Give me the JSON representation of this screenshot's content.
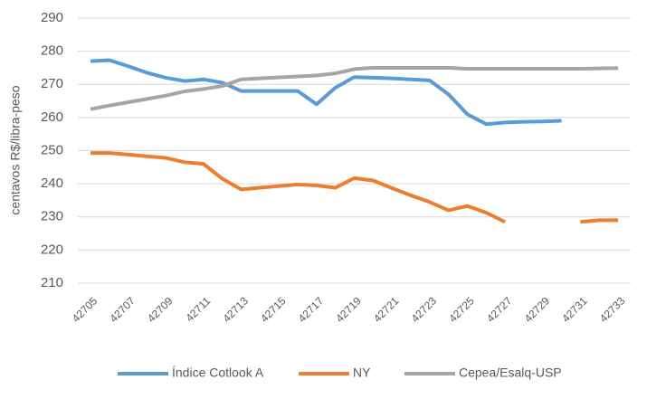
{
  "chart_data": {
    "type": "line",
    "y_label": "centavos R$/libra-peso",
    "x": [
      42705,
      42706,
      42707,
      42708,
      42709,
      42710,
      42711,
      42712,
      42713,
      42714,
      42715,
      42716,
      42717,
      42718,
      42719,
      42720,
      42721,
      42722,
      42723,
      42724,
      42725,
      42726,
      42727,
      42728,
      42729,
      42730,
      42731,
      42732,
      42733
    ],
    "series": [
      {
        "name": "Índice Cotlook A",
        "color": "#5b9bd5",
        "values": [
          277,
          277.3,
          275.5,
          273.5,
          272,
          271,
          271.5,
          270.5,
          268,
          268,
          268,
          268,
          264,
          269,
          272.2,
          272,
          271.8,
          271.5,
          271.2,
          267,
          261,
          258,
          258.5,
          258.7,
          258.8,
          259,
          null,
          null,
          null
        ]
      },
      {
        "name": "NY",
        "color": "#ed7d31",
        "values": [
          249.3,
          249.3,
          248.8,
          248.3,
          247.8,
          246.5,
          246,
          241.5,
          238.3,
          238.8,
          239.3,
          239.8,
          239.5,
          238.8,
          241.7,
          241,
          238.7,
          236.5,
          234.5,
          232,
          233.3,
          231.3,
          228.5,
          null,
          null,
          null,
          228.5,
          229,
          229
        ]
      },
      {
        "name": "Cepea/Esalq-USP",
        "color": "#a5a5a5",
        "values": [
          262.5,
          263.6,
          264.6,
          265.6,
          266.6,
          267.9,
          268.6,
          269.5,
          271.5,
          271.8,
          272.1,
          272.4,
          272.7,
          273.3,
          274.6,
          275,
          275,
          275,
          275,
          275,
          274.7,
          274.7,
          274.7,
          274.7,
          274.7,
          274.7,
          274.7,
          274.8,
          274.9
        ]
      }
    ],
    "xlim": [
      42705,
      42733
    ],
    "xticks": [
      42705,
      42707,
      42709,
      42711,
      42713,
      42715,
      42717,
      42719,
      42721,
      42723,
      42725,
      42727,
      42729,
      42731,
      42733
    ],
    "ylim": [
      210,
      290
    ],
    "yticks": [
      210,
      220,
      230,
      240,
      250,
      260,
      270,
      280,
      290
    ],
    "grid": true,
    "legend": "bottom"
  }
}
